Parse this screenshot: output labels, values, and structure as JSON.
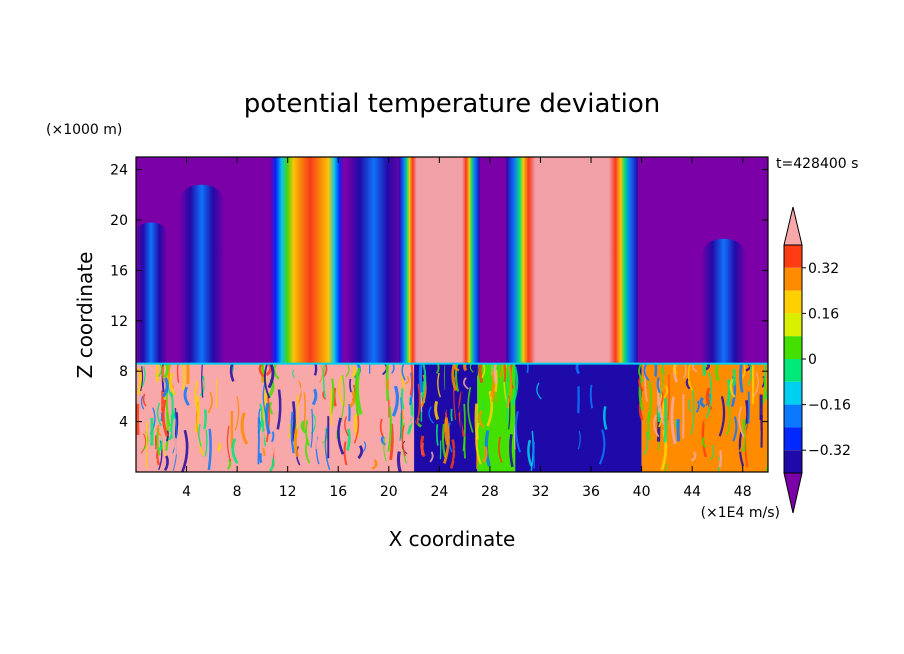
{
  "chart_data": {
    "type": "heatmap",
    "title": "potential temperature deviation",
    "xlabel": "X coordinate",
    "ylabel": "Z coordinate",
    "x_unit": "(×1E4 m/s)",
    "y_unit": "(×1000 m)",
    "time_label": "t=428400 s",
    "xlim": [
      0,
      50
    ],
    "ylim": [
      0,
      25
    ],
    "x_ticks": [
      4,
      8,
      12,
      16,
      20,
      24,
      28,
      32,
      36,
      40,
      44,
      48
    ],
    "y_ticks": [
      4,
      8,
      12,
      16,
      20,
      24
    ],
    "x_tick_labels": [
      "4",
      "8",
      "12",
      "16",
      "20",
      "24",
      "28",
      "32",
      "36",
      "40",
      "44",
      "48"
    ],
    "y_tick_labels": [
      "4",
      "8",
      "12",
      "16",
      "20",
      "24"
    ],
    "colorbar": {
      "levels": [
        -0.4,
        -0.32,
        -0.24,
        -0.16,
        -0.08,
        0,
        0.08,
        0.16,
        0.24,
        0.32,
        0.4
      ],
      "tick_labels": [
        "0.32",
        "0.16",
        "0",
        "−0.16",
        "−0.32"
      ],
      "tick_values": [
        0.32,
        0.16,
        0,
        -0.16,
        -0.32
      ],
      "colors": [
        "#7b00a8",
        "#1e0aa8",
        "#0028ff",
        "#0a78ff",
        "#00d0f0",
        "#00e878",
        "#44e000",
        "#d8f000",
        "#ffd000",
        "#ff8c00",
        "#ff3c14",
        "#f8a8a8"
      ]
    },
    "columns_upper": [
      {
        "x_center": 1.2,
        "half_width": 1.3,
        "top": 19.8,
        "value": -0.3
      },
      {
        "x_center": 5.2,
        "half_width": 1.8,
        "top": 22.8,
        "value": -0.22
      },
      {
        "x_center": 13.5,
        "half_width": 2.9,
        "top": 25,
        "value": 0.3
      },
      {
        "x_center": 18.8,
        "half_width": 2.2,
        "top": 25,
        "value": -0.28
      },
      {
        "x_center": 24.0,
        "half_width": 3.2,
        "top": 25,
        "value": 0.4
      },
      {
        "x_center": 34.5,
        "half_width": 5.2,
        "top": 25,
        "value": 0.4
      },
      {
        "x_center": 46.5,
        "half_width": 1.8,
        "top": 18.5,
        "value": -0.25
      }
    ],
    "layer_interface_z": 8.6,
    "lower_layer": [
      {
        "x_from": 0,
        "x_to": 22,
        "value": 0.4
      },
      {
        "x_from": 22,
        "x_to": 27,
        "value": -0.33
      },
      {
        "x_from": 27,
        "x_to": 30,
        "value": 0.05
      },
      {
        "x_from": 30,
        "x_to": 40,
        "value": -0.4
      },
      {
        "x_from": 40,
        "x_to": 50,
        "value": 0.3
      }
    ]
  }
}
